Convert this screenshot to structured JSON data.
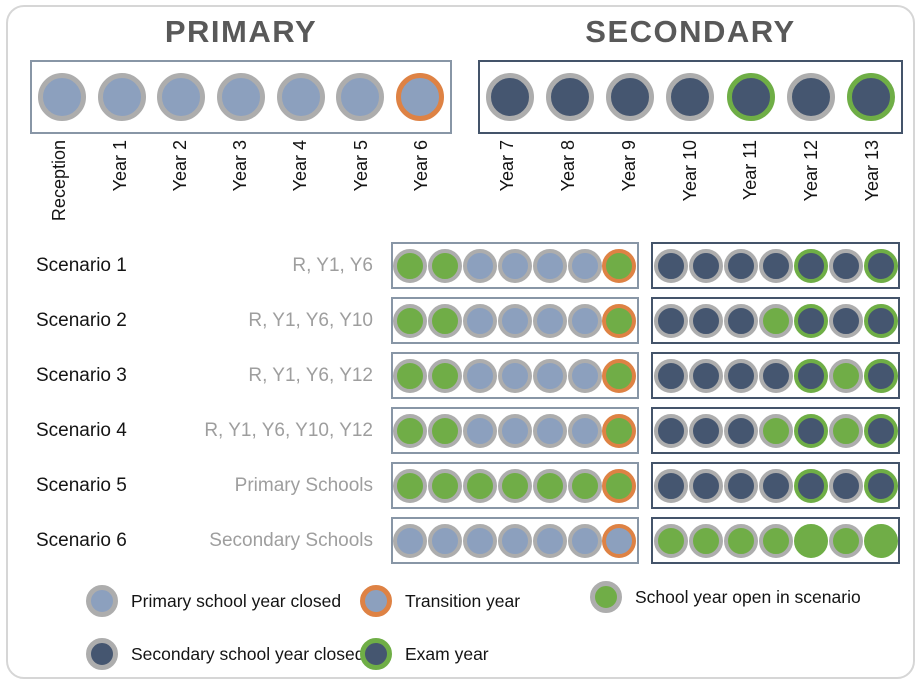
{
  "colors": {
    "primary_closed": "#8ca0be",
    "secondary_closed": "#455670",
    "open": "#70ad47",
    "ring_default": "#adadad",
    "ring_transition": "#de8244",
    "ring_exam": "#6fae46",
    "primary_box_border": "#8896a6",
    "secondary_box_border": "#44546a",
    "title_color": "#595959",
    "desc_color": "#9e9e9e"
  },
  "header": {
    "primary_title": "PRIMARY",
    "secondary_title": "SECONDARY",
    "primary_years": [
      "Reception",
      "Year 1",
      "Year 2",
      "Year 3",
      "Year 4",
      "Year 5",
      "Year 6"
    ],
    "secondary_years": [
      "Year 7",
      "Year 8",
      "Year 9",
      "Year 10",
      "Year 11",
      "Year 12",
      "Year 13"
    ],
    "primary_circles": [
      "b-y",
      "b-y",
      "b-y",
      "b-y",
      "b-y",
      "b-y",
      "b-o"
    ],
    "secondary_circles": [
      "d-y",
      "d-y",
      "d-y",
      "d-y",
      "d-n",
      "d-y",
      "d-n"
    ]
  },
  "scenarios": [
    {
      "label": "Scenario 1",
      "open_years": "R, Y1, Y6",
      "primary": [
        "g-y",
        "g-y",
        "b-y",
        "b-y",
        "b-y",
        "b-y",
        "g-o"
      ],
      "secondary": [
        "d-y",
        "d-y",
        "d-y",
        "d-y",
        "d-n",
        "d-y",
        "d-n"
      ]
    },
    {
      "label": "Scenario 2",
      "open_years": "R, Y1, Y6, Y10",
      "primary": [
        "g-y",
        "g-y",
        "b-y",
        "b-y",
        "b-y",
        "b-y",
        "g-o"
      ],
      "secondary": [
        "d-y",
        "d-y",
        "d-y",
        "g-y",
        "d-n",
        "d-y",
        "d-n"
      ]
    },
    {
      "label": "Scenario 3",
      "open_years": "R, Y1, Y6, Y12",
      "primary": [
        "g-y",
        "g-y",
        "b-y",
        "b-y",
        "b-y",
        "b-y",
        "g-o"
      ],
      "secondary": [
        "d-y",
        "d-y",
        "d-y",
        "d-y",
        "d-n",
        "g-y",
        "d-n"
      ]
    },
    {
      "label": "Scenario 4",
      "open_years": "R, Y1, Y6, Y10, Y12",
      "primary": [
        "g-y",
        "g-y",
        "b-y",
        "b-y",
        "b-y",
        "b-y",
        "g-o"
      ],
      "secondary": [
        "d-y",
        "d-y",
        "d-y",
        "g-y",
        "d-n",
        "g-y",
        "d-n"
      ]
    },
    {
      "label": "Scenario 5",
      "open_years": "Primary Schools",
      "primary": [
        "g-y",
        "g-y",
        "g-y",
        "g-y",
        "g-y",
        "g-y",
        "g-o"
      ],
      "secondary": [
        "d-y",
        "d-y",
        "d-y",
        "d-y",
        "d-n",
        "d-y",
        "d-n"
      ]
    },
    {
      "label": "Scenario 6",
      "open_years": "Secondary Schools",
      "primary": [
        "b-y",
        "b-y",
        "b-y",
        "b-y",
        "b-y",
        "b-y",
        "b-o"
      ],
      "secondary": [
        "g-y",
        "g-y",
        "g-y",
        "g-y",
        "g-n",
        "g-y",
        "g-n"
      ]
    }
  ],
  "legend": [
    {
      "label": "Primary school year closed",
      "circle": "b-y"
    },
    {
      "label": "Secondary school year closed",
      "circle": "d-y"
    },
    {
      "label": "Transition year",
      "circle": "b-o"
    },
    {
      "label": "Exam year",
      "circle": "d-n"
    },
    {
      "label": "School year open in scenario",
      "circle": "g-y"
    }
  ]
}
